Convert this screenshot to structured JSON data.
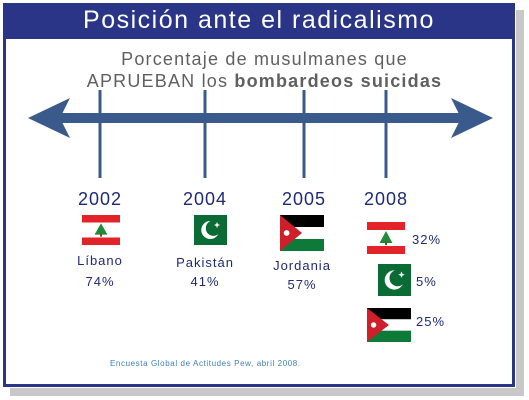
{
  "title": "Posición ante el radicalismo",
  "subtitle_line1": "Porcentaje de musulmanes que",
  "subtitle_line2_a": "APRUEBAN los ",
  "subtitle_line2_b": "bombardeos suicidas",
  "source": "Encuesta Global de Actitudes Pew, abril 2008.",
  "colors": {
    "frame": "#2a3588",
    "arrow": "#3a5a8c",
    "text": "#1e2a78",
    "source": "#3b7fc4"
  },
  "chart_data": {
    "type": "table",
    "years": [
      "2002",
      "2004",
      "2005",
      "2008"
    ],
    "entries": [
      {
        "year": "2002",
        "country": "Líbano",
        "value": 74,
        "label": "74%",
        "flag": "lebanon-flag"
      },
      {
        "year": "2004",
        "country": "Pakistán",
        "value": 41,
        "label": "41%",
        "flag": "pakistan-flag"
      },
      {
        "year": "2005",
        "country": "Jordania",
        "value": 57,
        "label": "57%",
        "flag": "jordan-flag"
      },
      {
        "year": "2008",
        "country": "",
        "value": 32,
        "label": "32%",
        "flag": "lebanon-flag"
      },
      {
        "year": "2008",
        "country": "",
        "value": 5,
        "label": "5%",
        "flag": "pakistan-flag"
      },
      {
        "year": "2008",
        "country": "",
        "value": 25,
        "label": "25%",
        "flag": "jordan-flag"
      }
    ]
  }
}
